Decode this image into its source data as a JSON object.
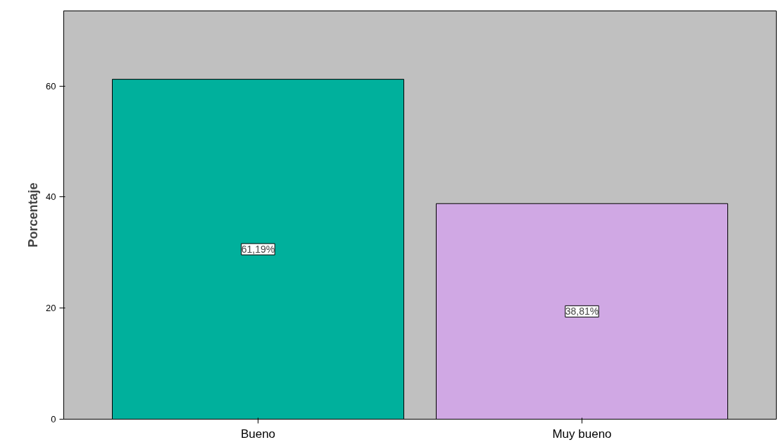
{
  "chart_data": {
    "type": "bar",
    "ylabel": "Porcentaje",
    "categories": [
      "Bueno",
      "Muy bueno"
    ],
    "values": [
      61.19,
      38.81
    ],
    "colors": [
      "#00b09c",
      "#d0a8e4"
    ],
    "value_labels": [
      "61,19%",
      "38,81%"
    ],
    "ylim": [
      0,
      73.5
    ],
    "yticks": [
      0,
      20,
      40,
      60
    ],
    "grid": false
  }
}
